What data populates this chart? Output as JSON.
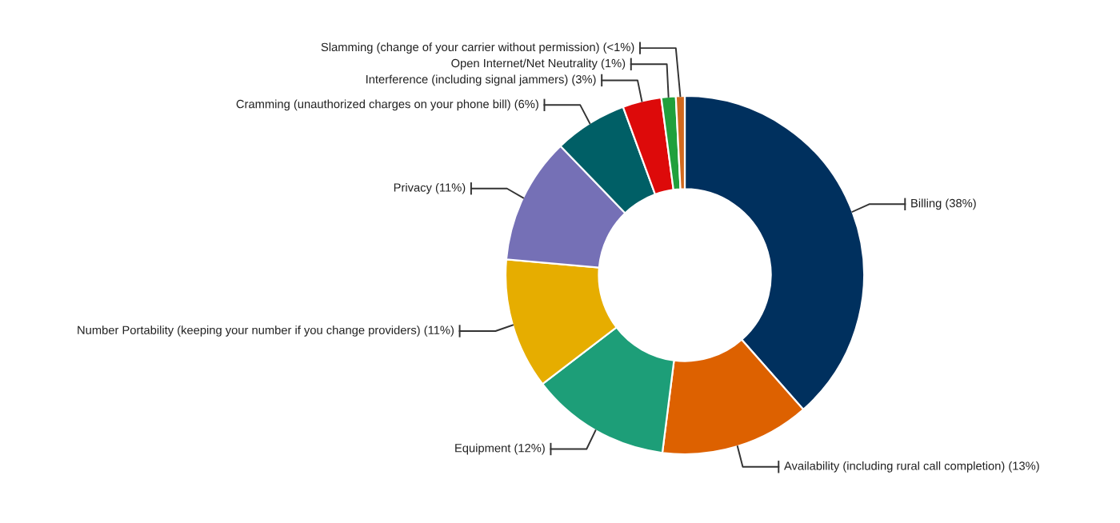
{
  "chart_data": {
    "type": "donut",
    "categories": [
      "Billing (38%)",
      "Availability (including rural call completion) (13%)",
      "Equipment (12%)",
      "Number Portability (keeping your number if you change providers) (11%)",
      "Privacy (11%)",
      "Cramming (unauthorized charges on your phone bill) (6%)",
      "Interference (including signal jammers) (3%)",
      "Open Internet/Net Neutrality (1%)",
      "Slamming (change of your carrier without permission) (<1%)"
    ],
    "values": [
      38.5,
      13.5,
      12.6,
      11.8,
      11.4,
      6.6,
      3.5,
      1.3,
      0.8
    ],
    "colors": [
      "#00305e",
      "#dd6100",
      "#1d9e78",
      "#e6ad00",
      "#7570b6",
      "#005f66",
      "#dd0a0a",
      "#20a03c",
      "#d2691e"
    ],
    "legend": false
  }
}
